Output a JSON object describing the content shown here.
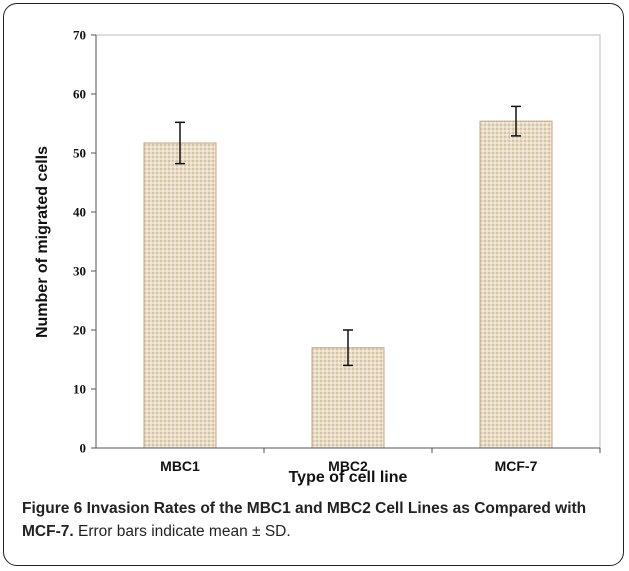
{
  "chart_data": {
    "type": "bar",
    "categories": [
      "MBC1",
      "MBC2",
      "MCF-7"
    ],
    "values": [
      51.7,
      17.0,
      55.4
    ],
    "errors": [
      3.5,
      3.0,
      2.5
    ],
    "xlabel": "Type of cell line",
    "ylabel": "Number of migrated cells",
    "ylim": [
      0,
      70
    ],
    "yticks": [
      "0",
      "10",
      "20",
      "30",
      "40",
      "50",
      "60",
      "70"
    ],
    "grid": false,
    "bar_color": "#e8dcc8"
  },
  "caption": {
    "label": "Figure 6",
    "title": "Invasion Rates of the MBC1 and MBC2 Cell Lines as Compared with MCF-7.",
    "note": "Error bars indicate mean ± SD."
  }
}
